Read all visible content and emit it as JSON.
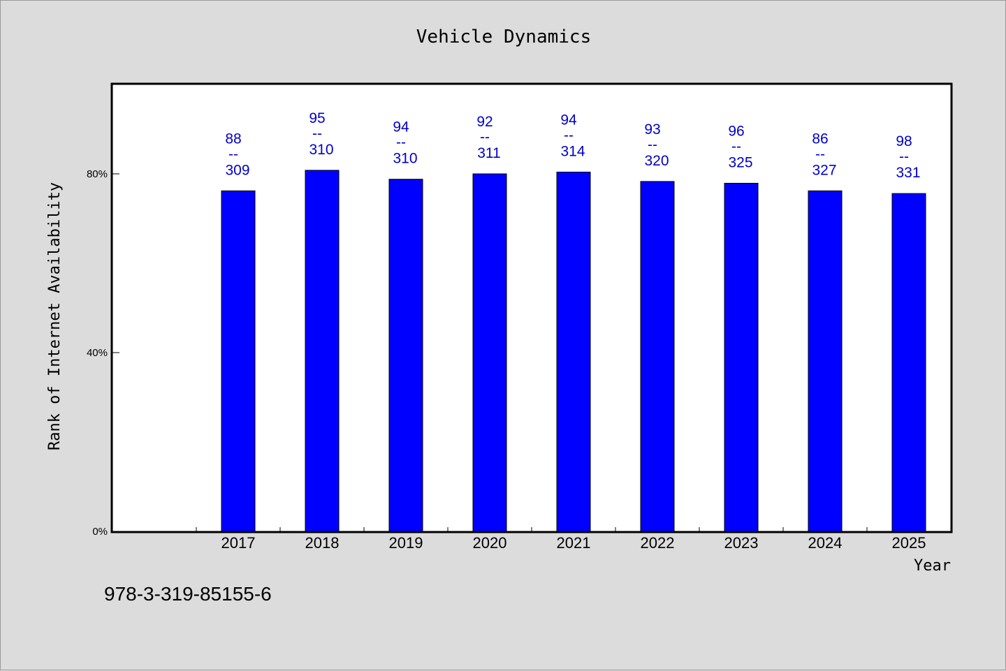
{
  "chart_data": {
    "type": "bar",
    "title": "Vehicle Dynamics",
    "xlabel": "Year",
    "ylabel": "Rank of Internet Availability",
    "categories": [
      "2017",
      "2018",
      "2019",
      "2020",
      "2021",
      "2022",
      "2023",
      "2024",
      "2025"
    ],
    "values": [
      76.2,
      80.8,
      78.8,
      80.0,
      80.4,
      78.3,
      77.9,
      76.2,
      75.6
    ],
    "label_top": [
      "88",
      "95",
      "94",
      "92",
      "94",
      "93",
      "96",
      "86",
      "98"
    ],
    "label_separator": "--",
    "label_bottom": [
      "309",
      "310",
      "310",
      "311",
      "314",
      "320",
      "325",
      "327",
      "331"
    ],
    "yticks": [
      0,
      40,
      80
    ],
    "ytick_labels": [
      "0%",
      "40%",
      "80%"
    ],
    "ylim": [
      0,
      100
    ],
    "bar_color": "#0000ff",
    "label_color": "#0000cc",
    "grid": false,
    "legend": "none"
  },
  "footer": {
    "isbn": "978-3-319-85155-6"
  }
}
